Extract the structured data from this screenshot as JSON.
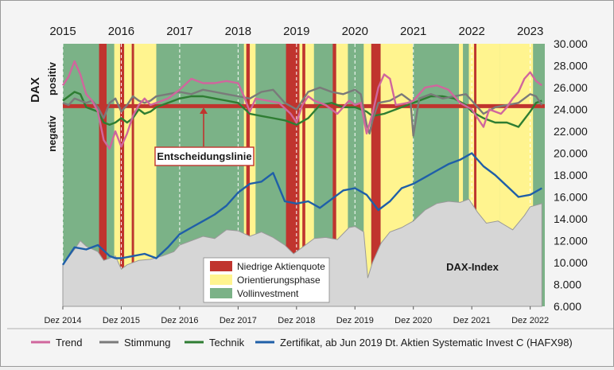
{
  "chart_data": {
    "type": "line",
    "title": "",
    "y_axis": {
      "left_labels": {
        "title": "DAX",
        "positive": "positiv",
        "negative": "negativ"
      },
      "right_ticks": [
        "30.000",
        "28.000",
        "26.000",
        "24.000",
        "22.000",
        "20.000",
        "18.000",
        "16.000",
        "14.000",
        "12.000",
        "10.000",
        "8.000",
        "6.000"
      ],
      "ylim": [
        6000,
        30000
      ]
    },
    "x_axis": {
      "top_labels": [
        "2015",
        "2016",
        "2017",
        "2018",
        "2019",
        "2020",
        "2021",
        "2022",
        "2023"
      ],
      "bottom_labels": [
        "Dez 2014",
        "Dez 2015",
        "Dez 2016",
        "Dez 2017",
        "Dez 2018",
        "Dez 2019",
        "Dez 2020",
        "Dez 2021",
        "Dez 2022"
      ],
      "xlim": [
        2015.0,
        2023.25
      ]
    },
    "annotations": {
      "decision_line": "Entscheidungslinie",
      "dax_label": "DAX-Index"
    },
    "regimes_legend": [
      {
        "name": "Niedrige Aktienquote",
        "color": "#c0342e"
      },
      {
        "name": "Orientierungsphase",
        "color": "#fff48f"
      },
      {
        "name": "Vollinvestment",
        "color": "#7bb287"
      }
    ],
    "regimes": [
      {
        "start": 2015.0,
        "end": 2015.62,
        "state": "full"
      },
      {
        "start": 2015.62,
        "end": 2015.75,
        "state": "low"
      },
      {
        "start": 2015.75,
        "end": 2015.88,
        "state": "full"
      },
      {
        "start": 2015.88,
        "end": 2015.98,
        "state": "orient"
      },
      {
        "start": 2015.98,
        "end": 2016.05,
        "state": "low"
      },
      {
        "start": 2016.05,
        "end": 2016.18,
        "state": "orient"
      },
      {
        "start": 2016.18,
        "end": 2016.22,
        "state": "low"
      },
      {
        "start": 2016.22,
        "end": 2016.6,
        "state": "orient"
      },
      {
        "start": 2016.6,
        "end": 2018.1,
        "state": "full"
      },
      {
        "start": 2018.1,
        "end": 2018.3,
        "state": "orient"
      },
      {
        "start": 2018.14,
        "end": 2018.2,
        "state": "low"
      },
      {
        "start": 2018.3,
        "end": 2018.82,
        "state": "full"
      },
      {
        "start": 2018.82,
        "end": 2019.05,
        "state": "low"
      },
      {
        "start": 2019.05,
        "end": 2019.3,
        "state": "orient"
      },
      {
        "start": 2019.1,
        "end": 2019.15,
        "state": "low"
      },
      {
        "start": 2019.3,
        "end": 2019.62,
        "state": "full"
      },
      {
        "start": 2019.62,
        "end": 2019.68,
        "state": "low"
      },
      {
        "start": 2019.68,
        "end": 2019.88,
        "state": "orient"
      },
      {
        "start": 2019.88,
        "end": 2020.15,
        "state": "full"
      },
      {
        "start": 2020.15,
        "end": 2020.28,
        "state": "orient"
      },
      {
        "start": 2020.28,
        "end": 2020.44,
        "state": "low"
      },
      {
        "start": 2020.44,
        "end": 2020.99,
        "state": "orient"
      },
      {
        "start": 2020.99,
        "end": 2021.78,
        "state": "full"
      },
      {
        "start": 2021.78,
        "end": 2021.85,
        "state": "orient"
      },
      {
        "start": 2021.85,
        "end": 2021.95,
        "state": "full"
      },
      {
        "start": 2021.95,
        "end": 2022.04,
        "state": "orient"
      },
      {
        "start": 2022.04,
        "end": 2022.08,
        "state": "low"
      },
      {
        "start": 2022.08,
        "end": 2022.48,
        "state": "orient"
      },
      {
        "start": 2022.48,
        "end": 2023.05,
        "state": "orient"
      },
      {
        "start": 2023.05,
        "end": 2023.25,
        "state": "full"
      }
    ],
    "series": [
      {
        "name": "Trend",
        "color": "#d0669d",
        "x": [
          2015.0,
          2015.1,
          2015.2,
          2015.3,
          2015.4,
          2015.5,
          2015.6,
          2015.7,
          2015.8,
          2015.9,
          2016.0,
          2016.1,
          2016.2,
          2016.3,
          2016.4,
          2016.5,
          2016.6,
          2016.7,
          2016.8,
          2016.9,
          2017.0,
          2017.2,
          2017.4,
          2017.6,
          2017.8,
          2018.0,
          2018.1,
          2018.2,
          2018.3,
          2018.5,
          2018.7,
          2018.9,
          2019.0,
          2019.1,
          2019.2,
          2019.3,
          2019.5,
          2019.7,
          2019.9,
          2020.0,
          2020.1,
          2020.2,
          2020.3,
          2020.4,
          2020.5,
          2020.6,
          2020.7,
          2020.9,
          2021.0,
          2021.2,
          2021.4,
          2021.6,
          2021.8,
          2022.0,
          2022.1,
          2022.2,
          2022.3,
          2022.5,
          2022.6,
          2022.7,
          2022.8,
          2022.9,
          2023.0,
          2023.1,
          2023.2
        ],
        "values": [
          26200,
          27000,
          28400,
          27200,
          25400,
          24800,
          23800,
          21200,
          20400,
          22000,
          20600,
          21800,
          23400,
          24400,
          25000,
          24400,
          24600,
          24800,
          25000,
          25400,
          25800,
          26800,
          26400,
          26400,
          26600,
          26400,
          25200,
          23800,
          25000,
          24800,
          24600,
          23600,
          22800,
          24400,
          25200,
          24800,
          24400,
          23600,
          24800,
          24400,
          24600,
          21800,
          23600,
          26000,
          27200,
          26800,
          24400,
          24600,
          24800,
          26000,
          26200,
          25800,
          24600,
          24000,
          23200,
          22400,
          24000,
          23600,
          24200,
          25000,
          25600,
          26800,
          27400,
          26600,
          26200
        ]
      },
      {
        "name": "Stimmung",
        "color": "#7a7a7a",
        "x": [
          2015.0,
          2015.1,
          2015.2,
          2015.3,
          2015.4,
          2015.5,
          2015.6,
          2015.7,
          2015.8,
          2015.9,
          2016.0,
          2016.1,
          2016.2,
          2016.3,
          2016.4,
          2016.5,
          2016.6,
          2016.8,
          2017.0,
          2017.2,
          2017.4,
          2017.6,
          2017.8,
          2018.0,
          2018.2,
          2018.4,
          2018.6,
          2018.8,
          2019.0,
          2019.2,
          2019.4,
          2019.6,
          2019.8,
          2020.0,
          2020.1,
          2020.2,
          2020.25,
          2020.3,
          2020.4,
          2020.6,
          2020.8,
          2020.95,
          2021.0,
          2021.1,
          2021.3,
          2021.5,
          2021.7,
          2021.9,
          2022.0,
          2022.2,
          2022.4,
          2022.6,
          2022.8,
          2023.0,
          2023.1,
          2023.2
        ],
        "values": [
          24600,
          24400,
          25000,
          24800,
          24600,
          24800,
          24200,
          23200,
          24600,
          25000,
          23800,
          24400,
          25200,
          24800,
          24600,
          24800,
          25200,
          25400,
          25600,
          25400,
          25800,
          25600,
          25400,
          25200,
          25000,
          25600,
          25800,
          24600,
          24000,
          25600,
          26000,
          25600,
          25400,
          25800,
          25400,
          22600,
          21800,
          23000,
          24600,
          24800,
          25400,
          24800,
          21600,
          25000,
          25400,
          25000,
          25200,
          25400,
          24800,
          23600,
          24200,
          24400,
          24600,
          25400,
          25200,
          24400
        ]
      },
      {
        "name": "Technik",
        "color": "#2e7d32",
        "x": [
          2015.0,
          2015.1,
          2015.2,
          2015.3,
          2015.4,
          2015.5,
          2015.6,
          2015.7,
          2015.8,
          2015.9,
          2016.0,
          2016.1,
          2016.2,
          2016.3,
          2016.4,
          2016.5,
          2016.6,
          2016.8,
          2017.0,
          2017.2,
          2017.4,
          2017.6,
          2017.8,
          2018.0,
          2018.2,
          2018.4,
          2018.6,
          2018.8,
          2019.0,
          2019.2,
          2019.4,
          2019.6,
          2019.8,
          2020.0,
          2020.2,
          2020.3,
          2020.5,
          2020.7,
          2020.9,
          2021.1,
          2021.3,
          2021.5,
          2021.7,
          2021.9,
          2022.0,
          2022.2,
          2022.4,
          2022.6,
          2022.8,
          2023.0,
          2023.1,
          2023.2
        ],
        "values": [
          24800,
          25200,
          25600,
          25400,
          24200,
          24000,
          23800,
          22800,
          22600,
          22800,
          23200,
          22800,
          23200,
          24000,
          23600,
          23800,
          24200,
          24600,
          25000,
          25200,
          25200,
          25000,
          24800,
          24600,
          23600,
          23400,
          23200,
          23000,
          22600,
          23200,
          24400,
          24600,
          24200,
          24200,
          23800,
          23400,
          23600,
          24000,
          24400,
          24800,
          25200,
          25200,
          25000,
          24400,
          23800,
          23200,
          22800,
          22800,
          22400,
          23800,
          24600,
          24800
        ]
      },
      {
        "name": "Zertifikat, ab Jun 2019 Dt. Aktien Systematic Invest C (HAFX98)",
        "color": "#1f5fa8",
        "x": [
          2015.0,
          2015.2,
          2015.4,
          2015.6,
          2015.8,
          2015.9,
          2016.0,
          2016.2,
          2016.4,
          2016.6,
          2016.8,
          2017.0,
          2017.2,
          2017.4,
          2017.6,
          2017.8,
          2018.0,
          2018.2,
          2018.4,
          2018.6,
          2018.8,
          2019.0,
          2019.2,
          2019.4,
          2019.6,
          2019.8,
          2020.0,
          2020.2,
          2020.4,
          2020.6,
          2020.8,
          2021.0,
          2021.2,
          2021.4,
          2021.6,
          2021.8,
          2022.0,
          2022.2,
          2022.4,
          2022.6,
          2022.8,
          2023.0,
          2023.2
        ],
        "values": [
          9800,
          11400,
          11200,
          11600,
          10600,
          10400,
          10400,
          10600,
          10800,
          10400,
          11400,
          12600,
          13200,
          13800,
          14400,
          15200,
          16400,
          17200,
          17400,
          18200,
          15600,
          15400,
          15600,
          15000,
          15800,
          16600,
          16800,
          16200,
          14800,
          15600,
          16800,
          17200,
          17800,
          18400,
          19000,
          19400,
          20000,
          18800,
          18000,
          17000,
          16000,
          16200,
          16800
        ]
      },
      {
        "name": "DAX-Index",
        "color": "#d6d6d6",
        "x": [
          2015.0,
          2015.2,
          2015.3,
          2015.4,
          2015.6,
          2015.7,
          2015.9,
          2016.0,
          2016.1,
          2016.3,
          2016.5,
          2016.7,
          2016.9,
          2017.0,
          2017.2,
          2017.4,
          2017.6,
          2017.8,
          2018.0,
          2018.2,
          2018.4,
          2018.6,
          2018.8,
          2018.95,
          2019.1,
          2019.3,
          2019.5,
          2019.7,
          2019.9,
          2020.0,
          2020.15,
          2020.22,
          2020.3,
          2020.45,
          2020.6,
          2020.8,
          2021.0,
          2021.2,
          2021.4,
          2021.6,
          2021.8,
          2021.95,
          2022.1,
          2022.25,
          2022.45,
          2022.7,
          2022.9,
          2023.0,
          2023.2
        ],
        "values": [
          9800,
          11200,
          12000,
          11500,
          11000,
          10200,
          10600,
          9400,
          9800,
          10200,
          10300,
          10600,
          11000,
          11600,
          12000,
          12400,
          12200,
          13000,
          12900,
          12400,
          12800,
          12300,
          11600,
          10800,
          11400,
          12200,
          12300,
          12100,
          13200,
          13300,
          12800,
          8600,
          10000,
          11800,
          12800,
          13200,
          13800,
          14800,
          15400,
          15600,
          15500,
          15800,
          14600,
          13600,
          13800,
          13000,
          14300,
          15100,
          15400
        ]
      }
    ]
  }
}
